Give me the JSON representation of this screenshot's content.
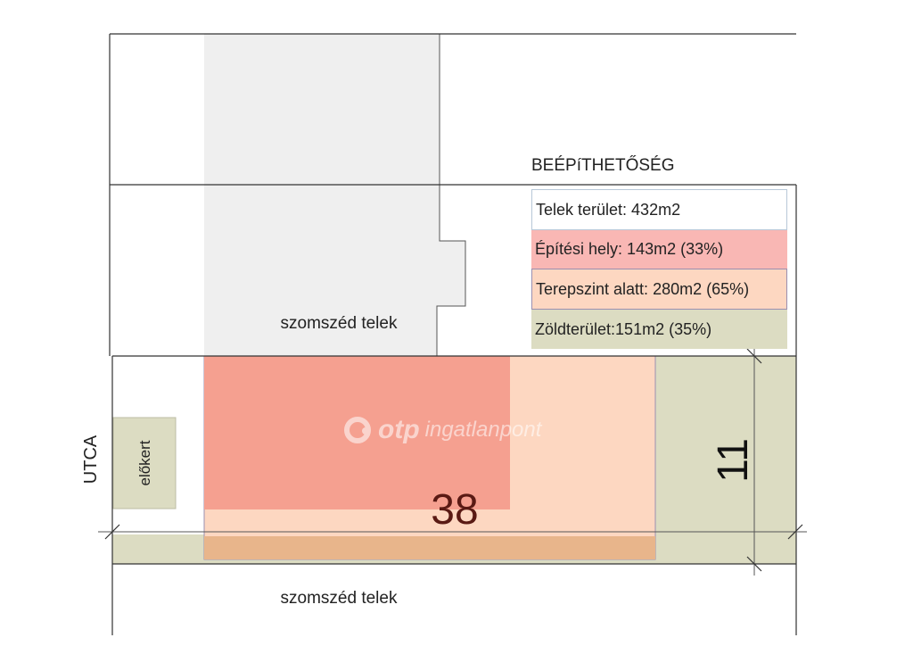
{
  "legend": {
    "heading": "BEÉPíTHETŐSÉG",
    "rows": [
      {
        "text": "Telek terület: 432m2",
        "color": "#ffffff"
      },
      {
        "text": "Építési hely: 143m2 (33%)",
        "color": "#f9b7b4"
      },
      {
        "text": "Terepszint alatt: 280m2 (65%)",
        "color": "#fdd7c1"
      },
      {
        "text": "Zöldterület:151m2 (35%)",
        "color": "#dcdcc2"
      }
    ]
  },
  "labels": {
    "neighbor_top": "szomszéd telek",
    "neighbor_bottom": "szomszéd telek",
    "street": "UTCA",
    "front_garden": "előkert",
    "length": "38",
    "width": "11"
  },
  "watermark": {
    "brand": "otp",
    "sub": "ingatlanpont"
  },
  "colors": {
    "neighbor_building": "#efefef",
    "building_zone": "#f5a090",
    "underground": "#fdd7c1",
    "underground_strip": "#e8b58b",
    "green": "#dcdcc2",
    "line": "#333333",
    "dimension_text": "#5a1a14"
  }
}
